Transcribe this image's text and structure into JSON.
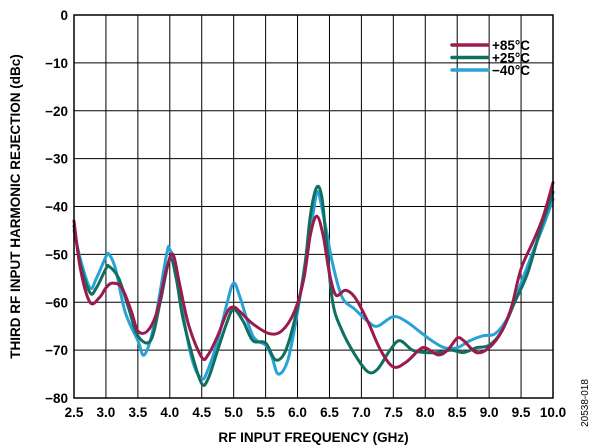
{
  "chart_data": {
    "type": "line",
    "title": "",
    "xlabel": "RF INPUT FREQUENCY (GHz)",
    "ylabel": "THIRD RF INPUT HARMONIC REJECTION (dBc)",
    "xlim": [
      2.5,
      10.0
    ],
    "ylim": [
      -80,
      0
    ],
    "x_ticks": [
      2.5,
      3.0,
      3.5,
      4.0,
      4.5,
      5.0,
      5.5,
      6.0,
      6.5,
      7.0,
      7.5,
      8.0,
      8.5,
      9.0,
      9.5,
      10.0
    ],
    "x_tick_labels": [
      "2.5",
      "3.0",
      "3.5",
      "4.0",
      "4.5",
      "5.0",
      "5.5",
      "6.0",
      "6.5",
      "7.0",
      "7.5",
      "8.0",
      "8.5",
      "9.0",
      "9.5",
      "10.0"
    ],
    "y_ticks": [
      0,
      -10,
      -20,
      -30,
      -40,
      -50,
      -60,
      -70,
      -80
    ],
    "y_tick_labels": [
      "0",
      "−10",
      "−20",
      "−30",
      "−40",
      "−50",
      "−60",
      "−70",
      "−80"
    ],
    "grid": true,
    "legend_position": "top-right",
    "figure_code": "20538-018",
    "series": [
      {
        "name": "+85°C",
        "color": "#9b1b4e",
        "points": [
          [
            2.5,
            -43
          ],
          [
            2.6,
            -53
          ],
          [
            2.75,
            -60
          ],
          [
            2.9,
            -59
          ],
          [
            3.0,
            -57
          ],
          [
            3.1,
            -56
          ],
          [
            3.25,
            -57
          ],
          [
            3.4,
            -62
          ],
          [
            3.5,
            -66
          ],
          [
            3.65,
            -66
          ],
          [
            3.8,
            -62
          ],
          [
            3.95,
            -53
          ],
          [
            4.05,
            -50
          ],
          [
            4.15,
            -56
          ],
          [
            4.3,
            -65
          ],
          [
            4.5,
            -71.5
          ],
          [
            4.6,
            -71
          ],
          [
            4.75,
            -67
          ],
          [
            4.9,
            -62
          ],
          [
            5.0,
            -61
          ],
          [
            5.1,
            -62
          ],
          [
            5.3,
            -64.5
          ],
          [
            5.55,
            -66.5
          ],
          [
            5.75,
            -66
          ],
          [
            5.95,
            -62
          ],
          [
            6.1,
            -55
          ],
          [
            6.2,
            -46
          ],
          [
            6.3,
            -42
          ],
          [
            6.4,
            -46
          ],
          [
            6.5,
            -54
          ],
          [
            6.6,
            -58.5
          ],
          [
            6.75,
            -57.5
          ],
          [
            6.9,
            -59
          ],
          [
            7.1,
            -64
          ],
          [
            7.3,
            -70
          ],
          [
            7.5,
            -73.5
          ],
          [
            7.7,
            -72.5
          ],
          [
            7.9,
            -70
          ],
          [
            8.0,
            -69.5
          ],
          [
            8.2,
            -71
          ],
          [
            8.35,
            -70
          ],
          [
            8.5,
            -67.5
          ],
          [
            8.6,
            -68
          ],
          [
            8.8,
            -70.5
          ],
          [
            9.0,
            -69.5
          ],
          [
            9.2,
            -66
          ],
          [
            9.35,
            -61
          ],
          [
            9.5,
            -53
          ],
          [
            9.7,
            -47
          ],
          [
            9.85,
            -42
          ],
          [
            10.0,
            -35
          ]
        ]
      },
      {
        "name": "+25°C",
        "color": "#0f7060",
        "points": [
          [
            2.5,
            -44
          ],
          [
            2.6,
            -52
          ],
          [
            2.75,
            -58
          ],
          [
            2.85,
            -57
          ],
          [
            3.0,
            -53
          ],
          [
            3.05,
            -52.5
          ],
          [
            3.2,
            -55
          ],
          [
            3.35,
            -61
          ],
          [
            3.5,
            -67
          ],
          [
            3.7,
            -68
          ],
          [
            3.85,
            -60
          ],
          [
            4.0,
            -51
          ],
          [
            4.1,
            -55
          ],
          [
            4.2,
            -63
          ],
          [
            4.35,
            -71
          ],
          [
            4.5,
            -77
          ],
          [
            4.6,
            -76
          ],
          [
            4.75,
            -70
          ],
          [
            4.9,
            -64
          ],
          [
            5.0,
            -61.5
          ],
          [
            5.15,
            -64
          ],
          [
            5.3,
            -68
          ],
          [
            5.5,
            -68.5
          ],
          [
            5.65,
            -72
          ],
          [
            5.8,
            -70.5
          ],
          [
            5.95,
            -64
          ],
          [
            6.1,
            -54
          ],
          [
            6.2,
            -42
          ],
          [
            6.3,
            -36
          ],
          [
            6.38,
            -38
          ],
          [
            6.45,
            -47
          ],
          [
            6.55,
            -60
          ],
          [
            6.7,
            -66
          ],
          [
            6.9,
            -71
          ],
          [
            7.1,
            -74.5
          ],
          [
            7.25,
            -74
          ],
          [
            7.45,
            -70
          ],
          [
            7.6,
            -68
          ],
          [
            7.8,
            -70
          ],
          [
            8.0,
            -70.5
          ],
          [
            8.2,
            -70.5
          ],
          [
            8.4,
            -70
          ],
          [
            8.6,
            -70.5
          ],
          [
            8.8,
            -69.5
          ],
          [
            9.0,
            -69
          ],
          [
            9.2,
            -66
          ],
          [
            9.4,
            -60
          ],
          [
            9.6,
            -54
          ],
          [
            9.8,
            -45
          ],
          [
            10.0,
            -37
          ]
        ]
      },
      {
        "name": "−40°C",
        "color": "#29a3d6",
        "points": [
          [
            2.5,
            -45
          ],
          [
            2.6,
            -51
          ],
          [
            2.75,
            -57
          ],
          [
            2.85,
            -55
          ],
          [
            3.0,
            -50.5
          ],
          [
            3.05,
            -50
          ],
          [
            3.15,
            -53
          ],
          [
            3.3,
            -62
          ],
          [
            3.5,
            -68
          ],
          [
            3.6,
            -71
          ],
          [
            3.75,
            -65
          ],
          [
            3.95,
            -50
          ],
          [
            4.0,
            -49
          ],
          [
            4.1,
            -53
          ],
          [
            4.2,
            -62
          ],
          [
            4.35,
            -72
          ],
          [
            4.5,
            -76
          ],
          [
            4.6,
            -74
          ],
          [
            4.75,
            -68
          ],
          [
            4.9,
            -60
          ],
          [
            5.0,
            -56
          ],
          [
            5.1,
            -59
          ],
          [
            5.3,
            -67
          ],
          [
            5.5,
            -69
          ],
          [
            5.6,
            -71.5
          ],
          [
            5.7,
            -75
          ],
          [
            5.85,
            -72
          ],
          [
            6.0,
            -62
          ],
          [
            6.15,
            -49
          ],
          [
            6.25,
            -41
          ],
          [
            6.32,
            -37
          ],
          [
            6.45,
            -45
          ],
          [
            6.55,
            -52
          ],
          [
            6.7,
            -59
          ],
          [
            6.9,
            -61.5
          ],
          [
            7.1,
            -64
          ],
          [
            7.25,
            -65
          ],
          [
            7.5,
            -63
          ],
          [
            7.7,
            -64
          ],
          [
            7.9,
            -66
          ],
          [
            8.1,
            -68
          ],
          [
            8.3,
            -69.5
          ],
          [
            8.5,
            -69.5
          ],
          [
            8.7,
            -68
          ],
          [
            8.9,
            -67
          ],
          [
            9.1,
            -66.5
          ],
          [
            9.3,
            -63
          ],
          [
            9.5,
            -56
          ],
          [
            9.7,
            -49
          ],
          [
            9.85,
            -44
          ],
          [
            10.0,
            -38.5
          ]
        ]
      }
    ]
  }
}
